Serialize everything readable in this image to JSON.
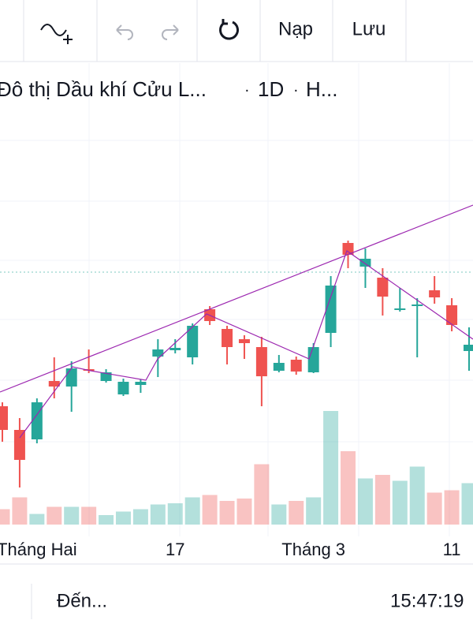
{
  "toolbar": {
    "buttons": [
      "Nạp",
      "Lưu"
    ]
  },
  "legend": {
    "symbol": "Đô thị Dầu khí Cửu L...",
    "interval": "1D",
    "extra": "H..."
  },
  "chart_data": {
    "type": "candlestick",
    "categories": [
      null,
      null,
      "Tháng Hai",
      null,
      null,
      null,
      null,
      null,
      null,
      null,
      "17",
      null,
      null,
      null,
      null,
      null,
      null,
      null,
      "Tháng 3",
      null,
      null,
      null,
      null,
      null,
      null,
      null,
      "11",
      null
    ],
    "open": [
      18.5,
      15.5,
      14.3,
      21.7,
      21,
      23.2,
      21.7,
      20,
      21.2,
      24.8,
      25.6,
      24.7,
      30.8,
      28.3,
      27,
      26,
      23,
      24.4,
      22.8,
      27.8,
      39.2,
      36.2,
      34.8,
      30.7,
      31.2,
      33.2,
      31.3,
      25.5
    ],
    "high": [
      19,
      17,
      19.5,
      24.7,
      24.2,
      25.7,
      23.2,
      22,
      21.9,
      27,
      27,
      29,
      31.2,
      28.7,
      27.5,
      27.3,
      25,
      24.8,
      26.5,
      35,
      39.5,
      38.5,
      36,
      33.5,
      32.2,
      35,
      32.2,
      28.5
    ],
    "low": [
      14,
      8.2,
      13.8,
      19.5,
      17.8,
      22.7,
      21.5,
      19.8,
      20.2,
      22.2,
      25.2,
      23.8,
      28.8,
      23.8,
      24.5,
      18.5,
      22.8,
      22.5,
      22.7,
      26,
      36,
      33.5,
      30,
      30.5,
      24.7,
      31.5,
      28,
      23
    ],
    "close": [
      15.5,
      11.7,
      19,
      21,
      23.3,
      23,
      22.8,
      21.6,
      21.6,
      25.7,
      25.9,
      28.7,
      29.3,
      26,
      26.5,
      22.3,
      24,
      22.9,
      26,
      33.8,
      37.7,
      37.2,
      32.4,
      30.9,
      31.4,
      32.3,
      28.8,
      26.3
    ],
    "volume": [
      13,
      23,
      9,
      15,
      15,
      15,
      8,
      11,
      13,
      17,
      18,
      23,
      25,
      20,
      22,
      51,
      17,
      20,
      23,
      96,
      62,
      39,
      42,
      37,
      49,
      27,
      29,
      35
    ],
    "up_color": "#26a69a",
    "down_color": "#ef5350",
    "ylim": [
      3.5,
      62
    ],
    "volume_lim": [
      0,
      100
    ]
  },
  "bottom_bar": {
    "goto": "Đến...",
    "time": "15:47:19"
  }
}
